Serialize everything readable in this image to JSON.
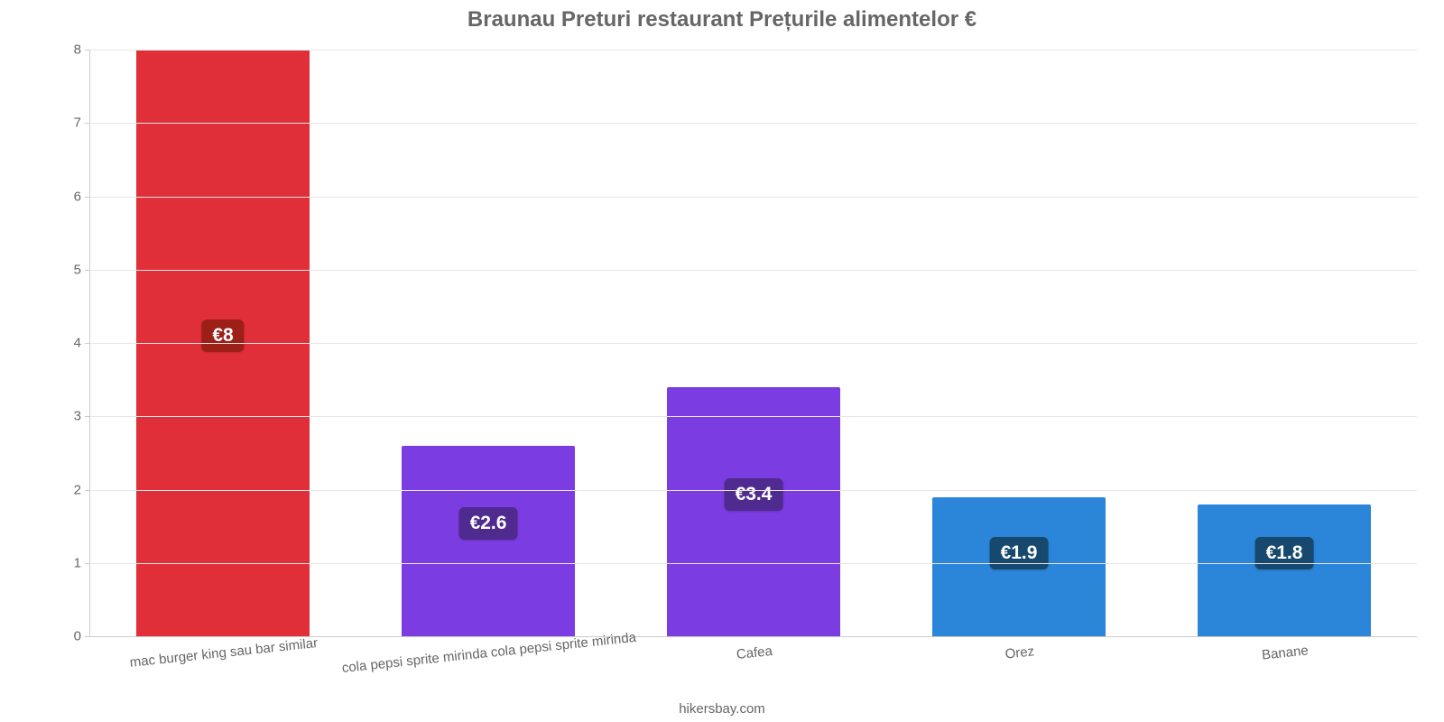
{
  "chart": {
    "type": "bar",
    "title": "Braunau Preturi restaurant Prețurile alimentelor €",
    "title_fontsize": 24,
    "title_color": "#666666",
    "background_color": "#ffffff",
    "grid_color": "#e6e6e6",
    "axis_color": "#cccccc",
    "axis_label_color": "#666666",
    "axis_label_fontsize": 15,
    "badge_fontsize": 21,
    "footer": "hikersbay.com",
    "y": {
      "min": 0,
      "max": 8,
      "ticks": [
        0,
        1,
        2,
        3,
        4,
        5,
        6,
        7,
        8
      ]
    },
    "bar_width_pct": 65,
    "bars": [
      {
        "category": "mac burger king sau bar similar",
        "value": 8,
        "label": "€8",
        "bar_color": "#e12f39",
        "badge_bg": "#9c1f18",
        "badge_top_pct": 46
      },
      {
        "category": "cola pepsi sprite mirinda cola pepsi sprite mirinda",
        "value": 2.6,
        "label": "€2.6",
        "bar_color": "#7b3ce2",
        "badge_bg": "#4f2a8f",
        "badge_top_pct": 78
      },
      {
        "category": "Cafea",
        "value": 3.4,
        "label": "€3.4",
        "bar_color": "#7b3ce2",
        "badge_bg": "#4f2a8f",
        "badge_top_pct": 73
      },
      {
        "category": "Orez",
        "value": 1.9,
        "label": "€1.9",
        "bar_color": "#2b86d9",
        "badge_bg": "#17496f",
        "badge_top_pct": 83
      },
      {
        "category": "Banane",
        "value": 1.8,
        "label": "€1.8",
        "bar_color": "#2b86d9",
        "badge_bg": "#17496f",
        "badge_top_pct": 83
      }
    ]
  }
}
